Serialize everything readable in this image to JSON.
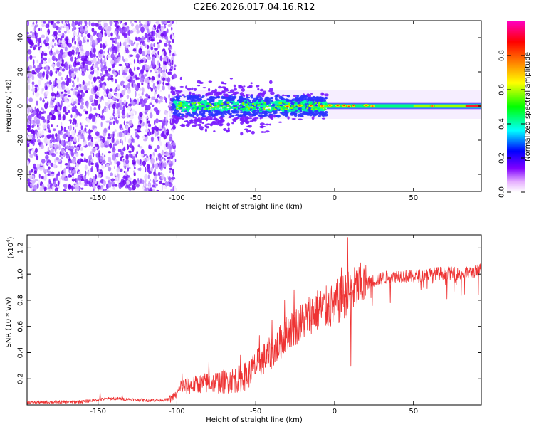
{
  "title": "C2E6.2026.017.04.16.R12",
  "chart_data": [
    {
      "type": "heatmap",
      "name": "spectrogram",
      "xlabel": "Height of straight line (km)",
      "ylabel": "Frequency (Hz)",
      "xlim": [
        -195,
        93
      ],
      "ylim": [
        -50,
        50
      ],
      "xticks": [
        -150,
        -100,
        -50,
        0,
        50
      ],
      "yticks": [
        -40,
        -20,
        0,
        20,
        40
      ],
      "noise_region_x": [
        -195,
        -103
      ],
      "signal_band": {
        "x_start": -103,
        "x_end": 93,
        "center_freq": 0
      },
      "colorbar": {
        "label": "Normalized spectral amplitude",
        "range": [
          0.0,
          1.0
        ],
        "ticks": [
          0.0,
          0.2,
          0.4,
          0.6,
          0.8
        ],
        "tick_labels": [
          "0.0",
          "0.2",
          "0.4",
          "0.6",
          "0.8"
        ],
        "colors": [
          "#ffffff",
          "#7f00ff",
          "#0000ff",
          "#00ffff",
          "#00ff00",
          "#ffff00",
          "#ff8000",
          "#ff0000",
          "#ff00c0"
        ]
      }
    },
    {
      "type": "line",
      "name": "snr",
      "xlabel": "Height of straight line (km)",
      "ylabel": "SNR (10 * v/v)",
      "y_multiplier": "(x10",
      "y_multiplier_exp": "4",
      "y_multiplier_close": ")",
      "xlim": [
        -195,
        93
      ],
      "ylim": [
        0,
        1.3
      ],
      "xticks": [
        -150,
        -100,
        -50,
        0,
        50
      ],
      "yticks": [
        0.2,
        0.4,
        0.6,
        0.8,
        1.0,
        1.2
      ],
      "ytick_labels": [
        "0.2",
        "0.4",
        "0.6",
        "0.8",
        "1.0",
        "1.2"
      ],
      "color": "#ee3333",
      "envelope": {
        "x": [
          -195,
          -160,
          -150,
          -140,
          -120,
          -105,
          -100,
          -98,
          -90,
          -80,
          -70,
          -60,
          -55,
          -50,
          -45,
          -40,
          -35,
          -30,
          -25,
          -20,
          -15,
          -10,
          -5,
          0,
          5,
          10,
          15,
          20,
          25,
          30,
          35,
          40,
          50,
          60,
          70,
          80,
          90,
          93
        ],
        "y": [
          0.02,
          0.025,
          0.04,
          0.05,
          0.035,
          0.04,
          0.08,
          0.14,
          0.15,
          0.17,
          0.18,
          0.2,
          0.23,
          0.3,
          0.35,
          0.4,
          0.47,
          0.55,
          0.6,
          0.64,
          0.7,
          0.73,
          0.74,
          0.76,
          0.82,
          0.86,
          0.9,
          0.93,
          0.95,
          0.97,
          0.98,
          0.99,
          0.98,
          1.0,
          1.01,
          1.0,
          1.02,
          1.04
        ]
      },
      "spikes": [
        {
          "x": -149,
          "y": 0.1
        },
        {
          "x": -135,
          "y": 0.08
        },
        {
          "x": -97,
          "y": 0.24
        },
        {
          "x": -80,
          "y": 0.34
        },
        {
          "x": -60,
          "y": 0.38
        },
        {
          "x": -48,
          "y": 0.53
        },
        {
          "x": -40,
          "y": 0.65
        },
        {
          "x": -32,
          "y": 0.8
        },
        {
          "x": -26,
          "y": 0.88
        },
        {
          "x": -18,
          "y": 0.7
        },
        {
          "x": -12,
          "y": 0.7
        },
        {
          "x": -4,
          "y": 0.78
        },
        {
          "x": 4,
          "y": 1.05
        },
        {
          "x": 8,
          "y": 1.28
        },
        {
          "x": 10,
          "y": 0.3
        },
        {
          "x": 14,
          "y": 0.95
        },
        {
          "x": 35,
          "y": 0.78
        },
        {
          "x": 70,
          "y": 0.92
        }
      ]
    }
  ]
}
